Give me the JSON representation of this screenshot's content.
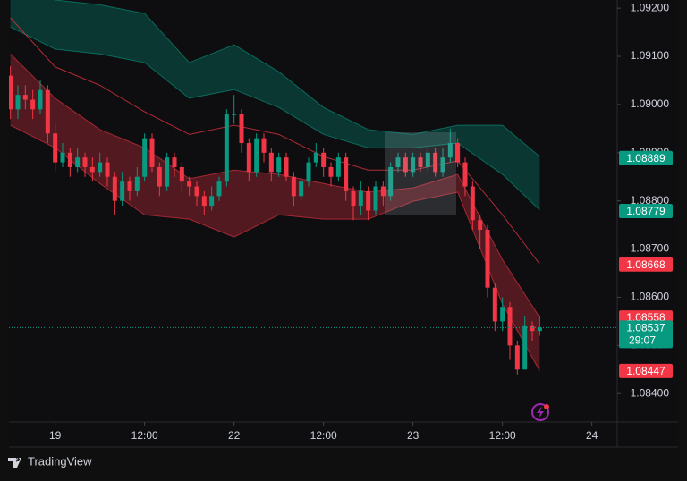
{
  "chart_data": {
    "type": "candlestick",
    "x": [
      -6,
      -5,
      -4,
      -3,
      -2,
      -1,
      0,
      1,
      2,
      3,
      4,
      5,
      6,
      7,
      8,
      9,
      10,
      11,
      12,
      13,
      14,
      15,
      16,
      17,
      18,
      19,
      20,
      21,
      22,
      23,
      24,
      25,
      26,
      27,
      28,
      29,
      30,
      31,
      32,
      33,
      34,
      35,
      36,
      37,
      38,
      39,
      40,
      41,
      42,
      43,
      44,
      45,
      46,
      47,
      48,
      49,
      50,
      51,
      52,
      53,
      54,
      55,
      56,
      57,
      58,
      59,
      60,
      61,
      62,
      63,
      64,
      65
    ],
    "open": [
      1.0906,
      1.0899,
      1.0902,
      1.0901,
      1.0899,
      1.0903,
      1.0894,
      1.0888,
      1.089,
      1.0887,
      1.0889,
      1.0887,
      1.0886,
      1.0888,
      1.0885,
      1.088,
      1.0884,
      1.0882,
      1.0885,
      1.0893,
      1.0887,
      1.0883,
      1.0889,
      1.0887,
      1.0884,
      1.0883,
      1.0881,
      1.0879,
      1.0881,
      1.0884,
      1.0898,
      1.0898,
      1.0892,
      1.0886,
      1.0893,
      1.089,
      1.0886,
      1.0889,
      1.0885,
      1.0881,
      1.0884,
      1.0888,
      1.089,
      1.0887,
      1.0885,
      1.0889,
      1.0882,
      1.0879,
      1.0882,
      1.0878,
      1.0883,
      1.0881,
      1.0887,
      1.0889,
      1.0886,
      1.0889,
      1.0887,
      1.089,
      1.0886,
      1.0889,
      1.0892,
      1.0888,
      1.0883,
      1.0876,
      1.0874,
      1.0862,
      1.0855,
      1.0858,
      1.085,
      1.0845,
      1.0854,
      1.0853
    ],
    "high": [
      1.0908,
      1.0904,
      1.0904,
      1.0903,
      1.0905,
      1.0904,
      1.0896,
      1.0892,
      1.0891,
      1.0891,
      1.089,
      1.0889,
      1.089,
      1.0889,
      1.0886,
      1.0886,
      1.0885,
      1.0887,
      1.0894,
      1.0894,
      1.0888,
      1.089,
      1.089,
      1.0888,
      1.0885,
      1.0884,
      1.0882,
      1.0883,
      1.0885,
      1.0899,
      1.0902,
      1.0899,
      1.0893,
      1.0894,
      1.0894,
      1.0891,
      1.089,
      1.089,
      1.0886,
      1.0885,
      1.0889,
      1.0892,
      1.0891,
      1.0888,
      1.089,
      1.089,
      1.0883,
      1.0884,
      1.0883,
      1.0884,
      1.0884,
      1.0888,
      1.089,
      1.089,
      1.089,
      1.089,
      1.0891,
      1.0891,
      1.0891,
      1.0895,
      1.0893,
      1.0889,
      1.0884,
      1.0877,
      1.0875,
      1.0863,
      1.086,
      1.0859,
      1.0851,
      1.0856,
      1.0855,
      1.0856
    ],
    "low": [
      1.0897,
      1.0897,
      1.0899,
      1.0897,
      1.0898,
      1.0892,
      1.0886,
      1.0887,
      1.0885,
      1.0886,
      1.0885,
      1.0884,
      1.0885,
      1.0883,
      1.0877,
      1.0879,
      1.088,
      1.0881,
      1.0884,
      1.0886,
      1.0881,
      1.0882,
      1.0885,
      1.0882,
      1.0881,
      1.0879,
      1.0877,
      1.0878,
      1.088,
      1.0883,
      1.0896,
      1.089,
      1.0884,
      1.0885,
      1.0888,
      1.0884,
      1.0885,
      1.0884,
      1.0879,
      1.088,
      1.0883,
      1.0887,
      1.0885,
      1.0883,
      1.0884,
      1.088,
      1.0876,
      1.0877,
      1.0876,
      1.0877,
      1.0879,
      1.088,
      1.0886,
      1.0885,
      1.0885,
      1.0886,
      1.0886,
      1.0885,
      1.0885,
      1.0888,
      1.0887,
      1.0881,
      1.0874,
      1.087,
      1.086,
      1.0853,
      1.0853,
      1.0847,
      1.0844,
      1.0845,
      1.0851,
      1.0852
    ],
    "close": [
      1.0899,
      1.0902,
      1.0901,
      1.0899,
      1.0903,
      1.0894,
      1.0888,
      1.089,
      1.0887,
      1.0889,
      1.0887,
      1.0886,
      1.0888,
      1.0885,
      1.088,
      1.0884,
      1.0882,
      1.0885,
      1.0893,
      1.0887,
      1.0883,
      1.0889,
      1.0887,
      1.0884,
      1.0883,
      1.0881,
      1.0879,
      1.0881,
      1.0884,
      1.0898,
      1.0898,
      1.0892,
      1.0886,
      1.0893,
      1.089,
      1.0886,
      1.0889,
      1.0885,
      1.0881,
      1.0884,
      1.0888,
      1.089,
      1.0887,
      1.0885,
      1.0889,
      1.0882,
      1.0879,
      1.0882,
      1.0878,
      1.0883,
      1.0881,
      1.0887,
      1.0889,
      1.0886,
      1.0889,
      1.0887,
      1.089,
      1.0886,
      1.0889,
      1.0892,
      1.0888,
      1.0883,
      1.0876,
      1.0874,
      1.0862,
      1.0855,
      1.0858,
      1.085,
      1.0845,
      1.0854,
      1.0853,
      1.08537
    ],
    "up_color": "#089981",
    "down_color": "#f23645",
    "xlim": [
      -6.2,
      75.4
    ],
    "xticks": [
      {
        "value": 0,
        "label": "19"
      },
      {
        "value": 12,
        "label": "12:00"
      },
      {
        "value": 24,
        "label": "22"
      },
      {
        "value": 36,
        "label": "12:00"
      },
      {
        "value": 48,
        "label": "23"
      },
      {
        "value": 60,
        "label": "12:00"
      },
      {
        "value": 72,
        "label": "24"
      }
    ],
    "ylim": [
      1.08341,
      1.09217
    ],
    "yticks": [
      {
        "value": 1.092,
        "label": "1.09200"
      },
      {
        "value": 1.091,
        "label": "1.09100"
      },
      {
        "value": 1.09,
        "label": "1.09000"
      },
      {
        "value": 1.089,
        "label": "1.08900"
      },
      {
        "value": 1.088,
        "label": "1.08800"
      },
      {
        "value": 1.087,
        "label": "1.08700"
      },
      {
        "value": 1.086,
        "label": "1.08600"
      },
      {
        "value": 1.085,
        "label": "1.08500"
      },
      {
        "value": 1.084,
        "label": "1.08400"
      }
    ],
    "band_x": [
      -6,
      0,
      6,
      12,
      18,
      24,
      30,
      36,
      42,
      48,
      54,
      60,
      65
    ],
    "bands": [
      {
        "color": "#089981",
        "upper": [
          1.09254,
          1.09217,
          1.09207,
          1.09189,
          1.09087,
          1.09124,
          1.09068,
          1.08994,
          1.08948,
          1.08938,
          1.08957,
          1.08957,
          1.08892
        ],
        "lower": [
          1.09161,
          1.09115,
          1.09105,
          1.09087,
          1.09013,
          1.09031,
          1.08994,
          1.08938,
          1.0891,
          1.0891,
          1.0892,
          1.08855,
          1.08781
        ]
      },
      {
        "color": "#f23645",
        "upper": [
          1.09105,
          1.09013,
          1.08948,
          1.0891,
          1.08846,
          1.08864,
          1.08855,
          1.08836,
          1.08818,
          1.08827,
          1.08855,
          1.08678,
          1.08558
        ],
        "lower": [
          1.08957,
          1.0891,
          1.08836,
          1.08771,
          1.08762,
          1.08725,
          1.08771,
          1.08762,
          1.08762,
          1.08799,
          1.08818,
          1.08586,
          1.08447
        ]
      }
    ],
    "lines": [
      {
        "color": "#f23645",
        "values": [
          1.0918,
          1.09078,
          1.0904,
          1.08985,
          1.08938,
          1.08957,
          1.08938,
          1.08892,
          1.08864,
          1.08864,
          1.08883,
          1.08771,
          1.08669
        ]
      }
    ],
    "price_labels": [
      {
        "value": 1.08889,
        "color": "#089981"
      },
      {
        "value": 1.08779,
        "color": "#089981"
      },
      {
        "value": 1.08668,
        "color": "#f23645"
      },
      {
        "value": 1.08558,
        "color": "#f23645"
      },
      {
        "value": 1.08447,
        "color": "#f23645"
      }
    ],
    "last_price": {
      "value": 1.08537,
      "countdown": "29:07",
      "color": "#089981"
    }
  },
  "brand": "TradingView"
}
